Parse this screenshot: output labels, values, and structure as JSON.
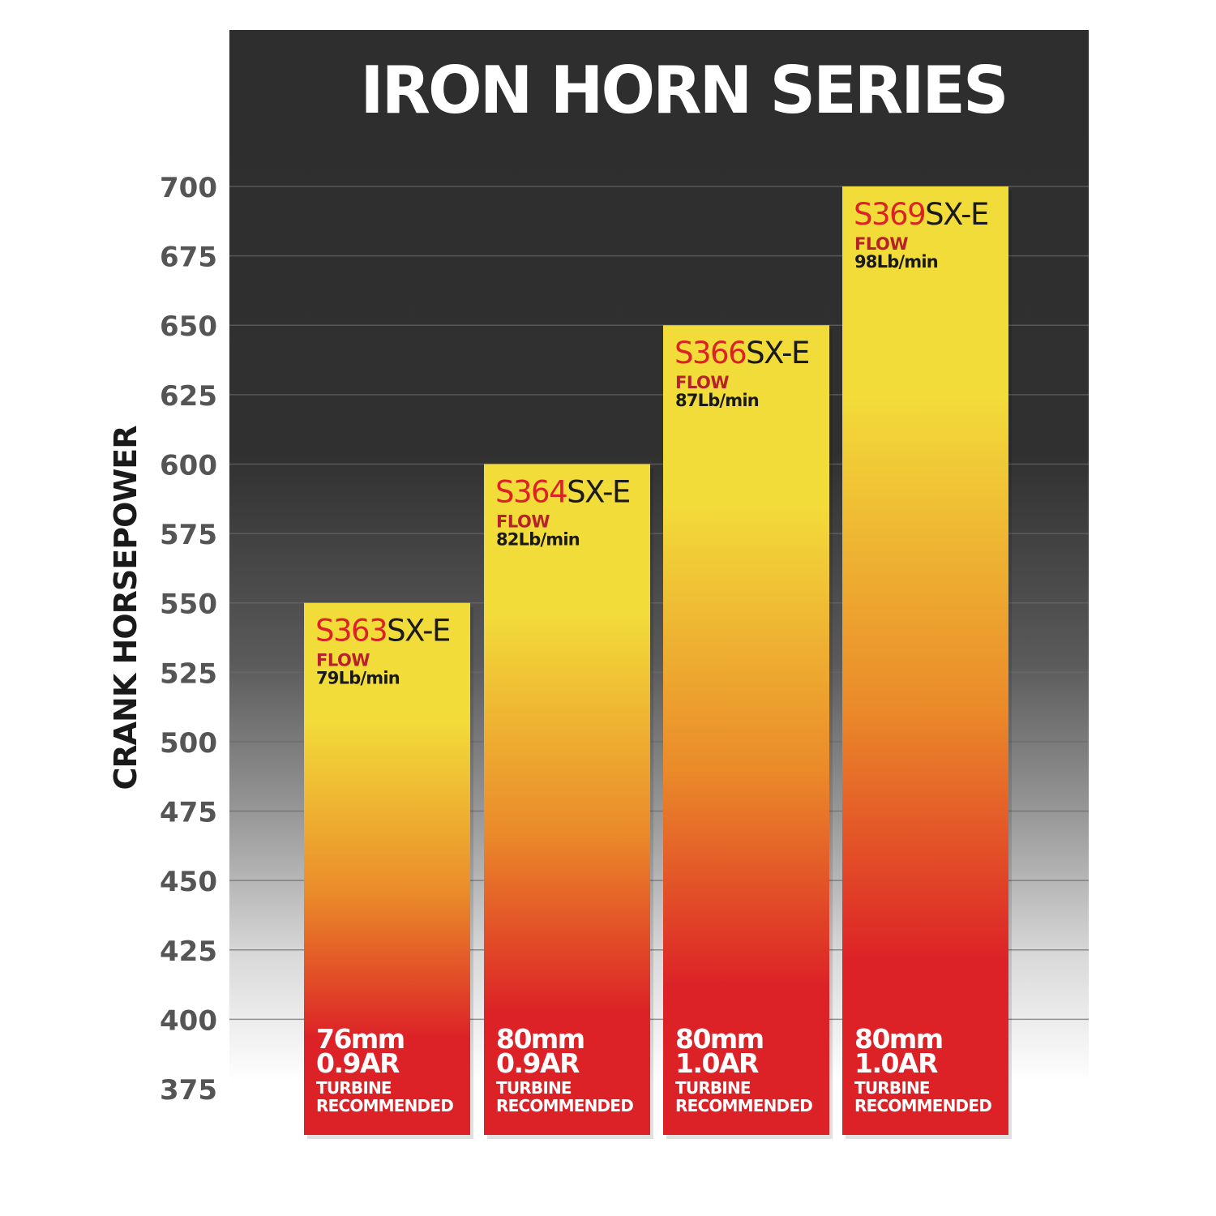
{
  "chart_data": {
    "type": "bar",
    "title": "IRON HORN SERIES",
    "ylabel": "CRANK HORSEPOWER",
    "xlabel": "",
    "ylim": [
      375,
      700
    ],
    "yticks": [
      "700",
      "675",
      "650",
      "625",
      "600",
      "575",
      "550",
      "525",
      "500",
      "475",
      "450",
      "425",
      "400",
      "375"
    ],
    "ytick_values": [
      700,
      675,
      650,
      625,
      600,
      575,
      550,
      525,
      500,
      475,
      450,
      425,
      400,
      375
    ],
    "grid": true,
    "categories": [
      "S363SX-E",
      "S364SX-E",
      "S366SX-E",
      "S369SX-E"
    ],
    "values": [
      550,
      600,
      650,
      700
    ],
    "bars": [
      {
        "model_prefix": "S363",
        "model_suffix": "SX-E",
        "flow_label": "FLOW",
        "flow_value": "79Lb/min",
        "turbine_size": "76mm",
        "turbine_ar": "0.9AR",
        "turbine_line1": "TURBINE",
        "turbine_line2": "RECOMMENDED"
      },
      {
        "model_prefix": "S364",
        "model_suffix": "SX-E",
        "flow_label": "FLOW",
        "flow_value": "82Lb/min",
        "turbine_size": "80mm",
        "turbine_ar": "0.9AR",
        "turbine_line1": "TURBINE",
        "turbine_line2": "RECOMMENDED"
      },
      {
        "model_prefix": "S366",
        "model_suffix": "SX-E",
        "flow_label": "FLOW",
        "flow_value": "87Lb/min",
        "turbine_size": "80mm",
        "turbine_ar": "1.0AR",
        "turbine_line1": "TURBINE",
        "turbine_line2": "RECOMMENDED"
      },
      {
        "model_prefix": "S369",
        "model_suffix": "SX-E",
        "flow_label": "FLOW",
        "flow_value": "98Lb/min",
        "turbine_size": "80mm",
        "turbine_ar": "1.0AR",
        "turbine_line1": "TURBINE",
        "turbine_line2": "RECOMMENDED"
      }
    ],
    "colors": {
      "bar_top": "#f2dc3a",
      "bar_mid": "#ea8a2a",
      "bar_bottom": "#dc2127",
      "model_prefix": "#dc2127",
      "model_suffix": "#1a1a1a",
      "tick_label": "#555555"
    }
  }
}
